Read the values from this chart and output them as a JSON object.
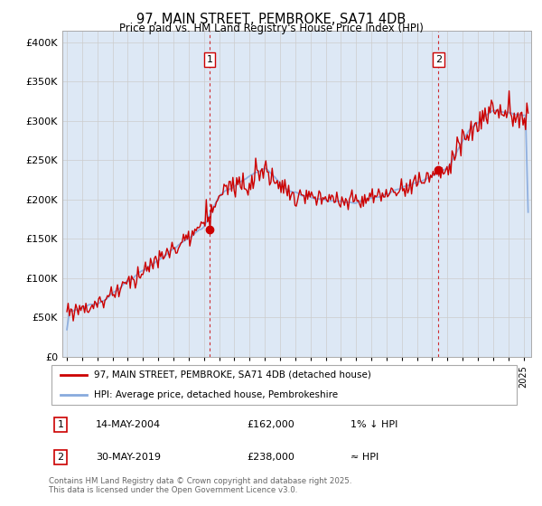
{
  "title": "97, MAIN STREET, PEMBROKE, SA71 4DB",
  "subtitle": "Price paid vs. HM Land Registry's House Price Index (HPI)",
  "ytick_values": [
    0,
    50000,
    100000,
    150000,
    200000,
    250000,
    300000,
    350000,
    400000
  ],
  "ylim": [
    0,
    415000
  ],
  "xlim_year_start": 1994.7,
  "xlim_year_end": 2025.5,
  "line1_color": "#cc0000",
  "line2_color": "#88aadd",
  "bg_fill_color": "#dde8f5",
  "marker1_date": 2004.37,
  "marker2_date": 2019.41,
  "marker1_value": 162000,
  "marker2_value": 238000,
  "legend_line1": "97, MAIN STREET, PEMBROKE, SA71 4DB (detached house)",
  "legend_line2": "HPI: Average price, detached house, Pembrokeshire",
  "footnote": "Contains HM Land Registry data © Crown copyright and database right 2025.\nThis data is licensed under the Open Government Licence v3.0.",
  "background_color": "#ffffff",
  "grid_color": "#cccccc"
}
